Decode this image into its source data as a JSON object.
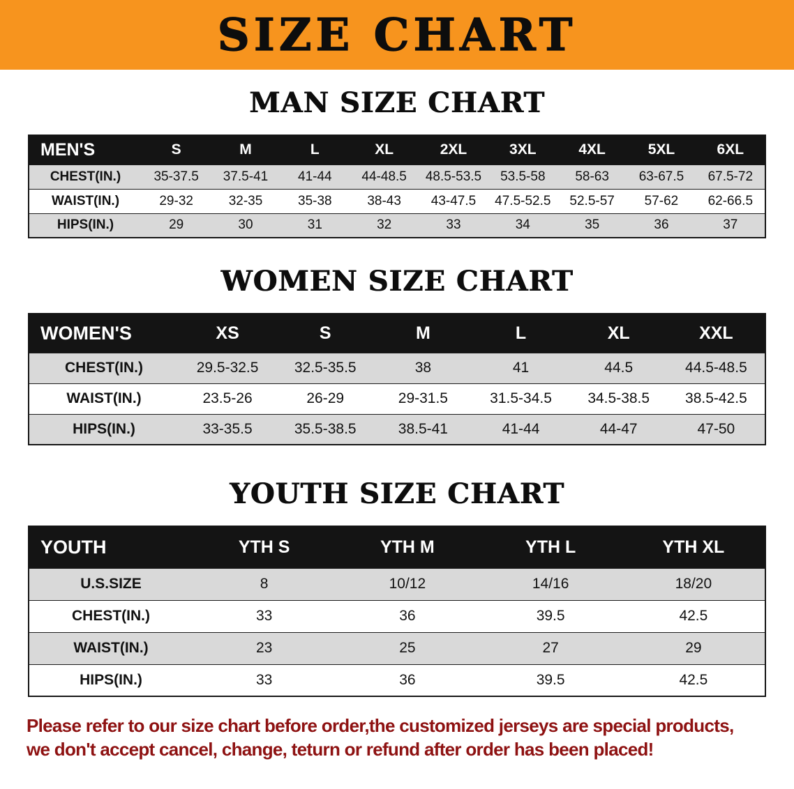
{
  "banner": {
    "title": "SIZE CHART"
  },
  "sections": [
    {
      "heading": "MAN SIZE CHART",
      "table": {
        "label": "MEN'S",
        "columns": [
          "S",
          "M",
          "L",
          "XL",
          "2XL",
          "3XL",
          "4XL",
          "5XL",
          "6XL"
        ],
        "rows": [
          {
            "label": "CHEST(IN.)",
            "values": [
              "35-37.5",
              "37.5-41",
              "41-44",
              "44-48.5",
              "48.5-53.5",
              "53.5-58",
              "58-63",
              "63-67.5",
              "67.5-72"
            ]
          },
          {
            "label": "WAIST(IN.)",
            "values": [
              "29-32",
              "32-35",
              "35-38",
              "38-43",
              "43-47.5",
              "47.5-52.5",
              "52.5-57",
              "57-62",
              "62-66.5"
            ]
          },
          {
            "label": "HIPS(IN.)",
            "values": [
              "29",
              "30",
              "31",
              "32",
              "33",
              "34",
              "35",
              "36",
              "37"
            ]
          }
        ]
      }
    },
    {
      "heading": "WOMEN SIZE CHART",
      "table": {
        "label": "WOMEN'S",
        "columns": [
          "XS",
          "S",
          "M",
          "L",
          "XL",
          "XXL"
        ],
        "rows": [
          {
            "label": "CHEST(IN.)",
            "values": [
              "29.5-32.5",
              "32.5-35.5",
              "38",
              "41",
              "44.5",
              "44.5-48.5"
            ]
          },
          {
            "label": "WAIST(IN.)",
            "values": [
              "23.5-26",
              "26-29",
              "29-31.5",
              "31.5-34.5",
              "34.5-38.5",
              "38.5-42.5"
            ]
          },
          {
            "label": "HIPS(IN.)",
            "values": [
              "33-35.5",
              "35.5-38.5",
              "38.5-41",
              "41-44",
              "44-47",
              "47-50"
            ]
          }
        ]
      }
    },
    {
      "heading": "YOUTH SIZE CHART",
      "table": {
        "label": "YOUTH",
        "columns": [
          "YTH S",
          "YTH M",
          "YTH L",
          "YTH XL"
        ],
        "rows": [
          {
            "label": "U.S.SIZE",
            "values": [
              "8",
              "10/12",
              "14/16",
              "18/20"
            ]
          },
          {
            "label": "CHEST(IN.)",
            "values": [
              "33",
              "36",
              "39.5",
              "42.5"
            ]
          },
          {
            "label": "WAIST(IN.)",
            "values": [
              "23",
              "25",
              "27",
              "29"
            ]
          },
          {
            "label": "HIPS(IN.)",
            "values": [
              "33",
              "36",
              "39.5",
              "42.5"
            ]
          }
        ]
      }
    }
  ],
  "footer": {
    "line1": "Please refer to our size chart before order,the customized jerseys are special products,",
    "line2": "we don't accept cancel, change, teturn or refund after order has been placed!"
  },
  "colors": {
    "banner_bg": "#F7941E",
    "header_bg": "#141414",
    "stripe": "#D9D9D9",
    "footer_text": "#8E1212"
  }
}
